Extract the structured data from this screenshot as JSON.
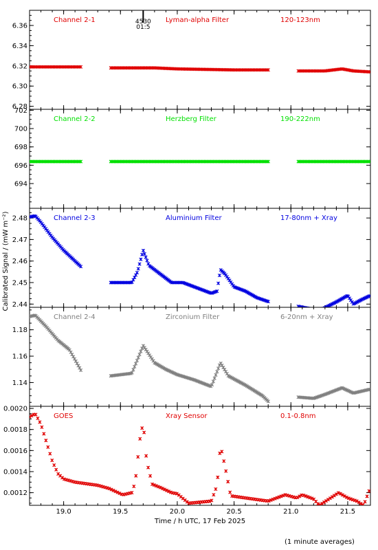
{
  "chart_data": {
    "type": "scatter",
    "ylabel": "Calibrated Signal / (mW m⁻²)",
    "xlabel": "Time / h UTC, 17 Feb 2025",
    "footnote": "(1 minute averages)",
    "xlim": [
      18.7,
      21.7
    ],
    "xticks": [
      19.0,
      19.5,
      20.0,
      20.5,
      21.0,
      21.5
    ],
    "xtick_labels": [
      "19.0",
      "19.5",
      "20.0",
      "20.5",
      "21.0",
      "21.5"
    ],
    "marker_annotation": {
      "x": 19.7,
      "lines": [
        "4530",
        "01:5"
      ]
    },
    "panels": [
      {
        "labels": [
          "Channel 2-1",
          "Lyman-alpha Filter",
          "120-123nm"
        ],
        "color": "#e00000",
        "ylim": [
          6.277,
          6.375
        ],
        "yticks": [
          6.28,
          6.3,
          6.32,
          6.34,
          6.36
        ],
        "ytick_labels": [
          "6.28",
          "6.30",
          "6.32",
          "6.34",
          "6.36"
        ],
        "gaps": [
          [
            19.16,
            19.41
          ],
          [
            20.81,
            21.06
          ]
        ],
        "profile": [
          [
            18.7,
            6.319
          ],
          [
            19.16,
            6.319
          ],
          [
            19.41,
            6.318
          ],
          [
            19.8,
            6.318
          ],
          [
            20.0,
            6.317
          ],
          [
            20.5,
            6.316
          ],
          [
            20.81,
            6.316
          ],
          [
            21.06,
            6.315
          ],
          [
            21.3,
            6.315
          ],
          [
            21.45,
            6.317
          ],
          [
            21.55,
            6.315
          ],
          [
            21.7,
            6.314
          ]
        ],
        "spikes": [],
        "step": 0.011
      },
      {
        "labels": [
          "Channel 2-2",
          "Herzberg Filter",
          "190-222nm"
        ],
        "color": "#00e000",
        "ylim": [
          691.3,
          702.1
        ],
        "yticks": [
          694,
          696,
          698,
          700,
          702
        ],
        "ytick_labels": [
          "694",
          "696",
          "698",
          "700",
          "702"
        ],
        "gaps": [
          [
            19.16,
            19.41
          ],
          [
            20.81,
            21.06
          ]
        ],
        "profile": [
          [
            18.7,
            696.4
          ],
          [
            21.7,
            696.4
          ]
        ],
        "spikes": [],
        "step": 0.011
      },
      {
        "labels": [
          "Channel 2-3",
          "Aluminium Filter",
          "17-80nm + Xray"
        ],
        "color": "#0000e0",
        "ylim": [
          2.4385,
          2.4845
        ],
        "yticks": [
          2.44,
          2.45,
          2.46,
          2.47,
          2.48
        ],
        "ytick_labels": [
          "2.44",
          "2.45",
          "2.46",
          "2.47",
          "2.48"
        ],
        "gaps": [
          [
            19.16,
            19.41
          ],
          [
            20.81,
            21.06
          ]
        ],
        "profile": [
          [
            18.7,
            2.4805
          ],
          [
            18.75,
            2.481
          ],
          [
            18.8,
            2.478
          ],
          [
            18.9,
            2.471
          ],
          [
            19.0,
            2.465
          ],
          [
            19.1,
            2.46
          ],
          [
            19.16,
            2.457
          ],
          [
            19.41,
            2.45
          ],
          [
            19.6,
            2.45
          ],
          [
            19.65,
            2.455
          ],
          [
            19.7,
            2.465
          ],
          [
            19.75,
            2.458
          ],
          [
            19.85,
            2.454
          ],
          [
            19.95,
            2.45
          ],
          [
            20.05,
            2.45
          ],
          [
            20.2,
            2.447
          ],
          [
            20.3,
            2.445
          ],
          [
            20.35,
            2.446
          ],
          [
            20.38,
            2.456
          ],
          [
            20.42,
            2.454
          ],
          [
            20.5,
            2.448
          ],
          [
            20.6,
            2.446
          ],
          [
            20.7,
            2.443
          ],
          [
            20.81,
            2.441
          ],
          [
            21.06,
            2.439
          ],
          [
            21.25,
            2.437
          ],
          [
            21.4,
            2.441
          ],
          [
            21.5,
            2.444
          ],
          [
            21.55,
            2.44
          ],
          [
            21.62,
            2.442
          ],
          [
            21.7,
            2.444
          ]
        ],
        "spikes": [],
        "step": 0.011
      },
      {
        "labels": [
          "Channel 2-4",
          "Zirconium Filter",
          "6-20nm + Xray"
        ],
        "color": "#808080",
        "ylim": [
          1.122,
          1.197
        ],
        "yticks": [
          1.14,
          1.16,
          1.18
        ],
        "ytick_labels": [
          "1.14",
          "1.16",
          "1.18"
        ],
        "gaps": [
          [
            19.16,
            19.41
          ],
          [
            20.81,
            21.06
          ]
        ],
        "profile": [
          [
            18.7,
            1.19
          ],
          [
            18.75,
            1.191
          ],
          [
            18.85,
            1.182
          ],
          [
            18.95,
            1.172
          ],
          [
            19.05,
            1.165
          ],
          [
            19.16,
            1.148
          ],
          [
            19.41,
            1.145
          ],
          [
            19.6,
            1.147
          ],
          [
            19.7,
            1.168
          ],
          [
            19.8,
            1.155
          ],
          [
            19.9,
            1.15
          ],
          [
            20.0,
            1.146
          ],
          [
            20.15,
            1.142
          ],
          [
            20.3,
            1.137
          ],
          [
            20.38,
            1.155
          ],
          [
            20.45,
            1.145
          ],
          [
            20.6,
            1.138
          ],
          [
            20.75,
            1.13
          ],
          [
            20.81,
            1.125
          ],
          [
            21.06,
            1.129
          ],
          [
            21.2,
            1.128
          ],
          [
            21.3,
            1.131
          ],
          [
            21.45,
            1.136
          ],
          [
            21.55,
            1.132
          ],
          [
            21.7,
            1.135
          ]
        ],
        "spikes": [],
        "step": 0.011
      },
      {
        "labels": [
          "GOES",
          "Xray Sensor",
          "0.1-0.8nm"
        ],
        "color": "#e00000",
        "ylim": [
          0.00108,
          0.00202
        ],
        "yticks": [
          0.0012,
          0.0014,
          0.0016,
          0.0018,
          0.002
        ],
        "ytick_labels": [
          "0.0012",
          "0.0014",
          "0.0016",
          "0.0018",
          "0.0020"
        ],
        "gaps": [],
        "profile": [
          [
            18.7,
            0.00192
          ],
          [
            18.75,
            0.00195
          ],
          [
            18.8,
            0.00185
          ],
          [
            18.9,
            0.0015
          ],
          [
            18.95,
            0.00138
          ],
          [
            19.0,
            0.00133
          ],
          [
            19.1,
            0.0013
          ],
          [
            19.3,
            0.00127
          ],
          [
            19.4,
            0.00124
          ],
          [
            19.52,
            0.00118
          ],
          [
            19.6,
            0.0012
          ],
          [
            19.63,
            0.0013
          ],
          [
            19.67,
            0.0017
          ],
          [
            19.7,
            0.00187
          ],
          [
            19.73,
            0.0015
          ],
          [
            19.78,
            0.00128
          ],
          [
            19.85,
            0.00125
          ],
          [
            19.95,
            0.0012
          ],
          [
            20.0,
            0.00119
          ],
          [
            20.1,
            0.0011
          ],
          [
            20.3,
            0.00112
          ],
          [
            20.35,
            0.00127
          ],
          [
            20.38,
            0.00165
          ],
          [
            20.42,
            0.00145
          ],
          [
            20.47,
            0.00117
          ],
          [
            20.6,
            0.00115
          ],
          [
            20.8,
            0.00112
          ],
          [
            20.95,
            0.00118
          ],
          [
            21.05,
            0.00115
          ],
          [
            21.1,
            0.00118
          ],
          [
            21.2,
            0.00114
          ],
          [
            21.25,
            0.00108
          ],
          [
            21.35,
            0.00115
          ],
          [
            21.42,
            0.0012
          ],
          [
            21.5,
            0.00115
          ],
          [
            21.58,
            0.00112
          ],
          [
            21.64,
            0.00108
          ],
          [
            21.7,
            0.00125
          ]
        ],
        "spikes": [],
        "step": 0.018
      }
    ]
  }
}
